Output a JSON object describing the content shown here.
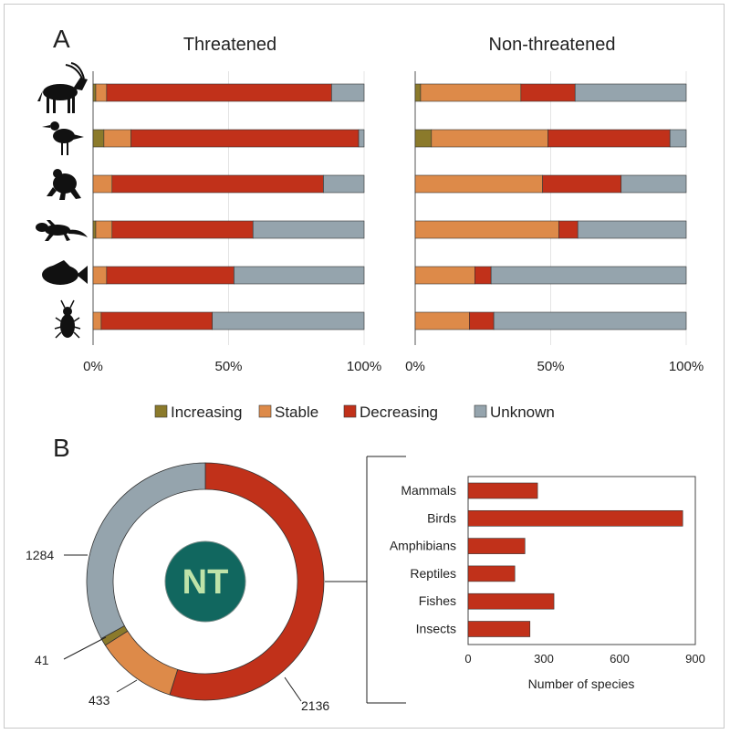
{
  "panel_a": {
    "letter": "A",
    "charts": [
      {
        "title": "Threatened",
        "type": "stacked-bar-horizontal",
        "categories": [
          "Mammals",
          "Birds",
          "Amphibians",
          "Reptiles",
          "Fishes",
          "Insects"
        ],
        "series": [
          {
            "name": "Increasing",
            "values": [
              1,
              4,
              0,
              1,
              0,
              0
            ]
          },
          {
            "name": "Stable",
            "values": [
              4,
              10,
              7,
              6,
              5,
              3
            ]
          },
          {
            "name": "Decreasing",
            "values": [
              83,
              84,
              78,
              52,
              47,
              41
            ]
          },
          {
            "name": "Unknown",
            "values": [
              12,
              2,
              15,
              41,
              48,
              56
            ]
          }
        ],
        "xticks": [
          "0%",
          "50%",
          "100%"
        ],
        "xlim": [
          0,
          100
        ]
      },
      {
        "title": "Non-threatened",
        "type": "stacked-bar-horizontal",
        "categories": [
          "Mammals",
          "Birds",
          "Amphibians",
          "Reptiles",
          "Fishes",
          "Insects"
        ],
        "series": [
          {
            "name": "Increasing",
            "values": [
              2,
              6,
              0,
              0,
              0,
              0
            ]
          },
          {
            "name": "Stable",
            "values": [
              37,
              43,
              47,
              53,
              22,
              20
            ]
          },
          {
            "name": "Decreasing",
            "values": [
              20,
              45,
              29,
              7,
              6,
              9
            ]
          },
          {
            "name": "Unknown",
            "values": [
              41,
              6,
              24,
              40,
              72,
              71
            ]
          }
        ],
        "xticks": [
          "0%",
          "50%",
          "100%"
        ],
        "xlim": [
          0,
          100
        ]
      }
    ],
    "legend": [
      "Increasing",
      "Stable",
      "Decreasing",
      "Unknown"
    ],
    "animals": [
      "antelope-icon",
      "bird-icon",
      "frog-icon",
      "lizard-icon",
      "fish-icon",
      "beetle-icon"
    ]
  },
  "panel_b": {
    "letter": "B",
    "center_label": "NT",
    "chart_data": [
      {
        "type": "pie",
        "subtype": "donut",
        "slices": [
          {
            "name": "Decreasing",
            "value": 2136,
            "label": "2136"
          },
          {
            "name": "Stable",
            "value": 433,
            "label": "433"
          },
          {
            "name": "Increasing",
            "value": 41,
            "label": "41"
          },
          {
            "name": "Unknown",
            "value": 1284,
            "label": "1284"
          }
        ]
      },
      {
        "type": "bar",
        "orientation": "horizontal",
        "categories": [
          "Mammals",
          "Birds",
          "Amphibians",
          "Reptiles",
          "Fishes",
          "Insects"
        ],
        "values": [
          275,
          850,
          225,
          185,
          340,
          245
        ],
        "xlabel": "Number of species",
        "xticks": [
          "0",
          "300",
          "600",
          "900"
        ],
        "xlim": [
          0,
          900
        ]
      }
    ]
  },
  "colors": {
    "Increasing": "#8b7a2b",
    "Stable": "#dd8a49",
    "Decreasing": "#c1311a",
    "Unknown": "#95a4ad",
    "nt_fill": "#11675f",
    "nt_text": "#bfe3a9"
  }
}
